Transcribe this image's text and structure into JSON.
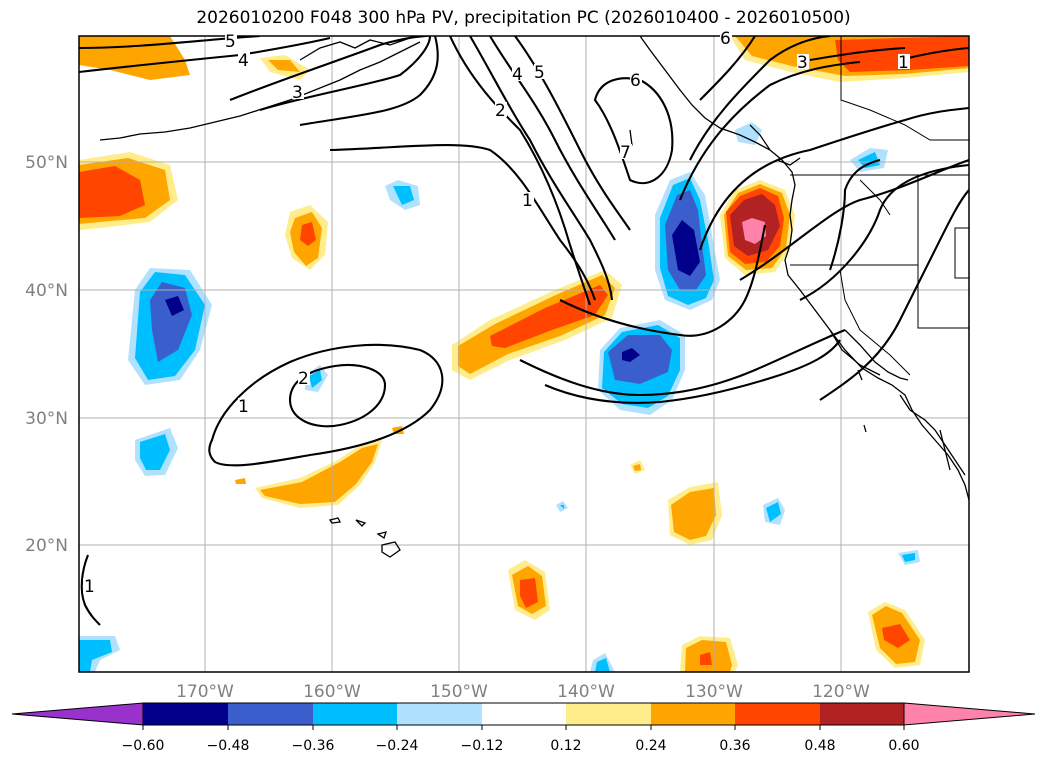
{
  "title": "2026010200 F048 300 hPa PV, precipitation PC (2026010400 - 2026010500)",
  "map": {
    "region": "North-east Pacific / western North America",
    "lat_ticks": [
      "50°N",
      "40°N",
      "30°N",
      "20°N"
    ],
    "lon_ticks": [
      "170°W",
      "160°W",
      "150°W",
      "140°W",
      "130°W",
      "120°W"
    ],
    "pv_contour_labels": [
      "5",
      "4",
      "3",
      "4",
      "5",
      "2",
      "1",
      "6",
      "7",
      "6",
      "3",
      "1",
      "2",
      "1",
      "1"
    ]
  },
  "colorbar": {
    "tick_labels": [
      "−0.60",
      "−0.48",
      "−0.36",
      "−0.24",
      "−0.12",
      "0.12",
      "0.24",
      "0.36",
      "0.48",
      "0.60"
    ],
    "colors": [
      "#9932cc",
      "#00008b",
      "#3a5fcd",
      "#00bfff",
      "#b0e2ff",
      "#ffffff",
      "#ffec8b",
      "#ffa500",
      "#ff4500",
      "#b22222",
      "#ff82ab"
    ]
  },
  "colors": {
    "land": "#000000",
    "grid": "#b0b0b0",
    "tick_text": "#808080"
  }
}
